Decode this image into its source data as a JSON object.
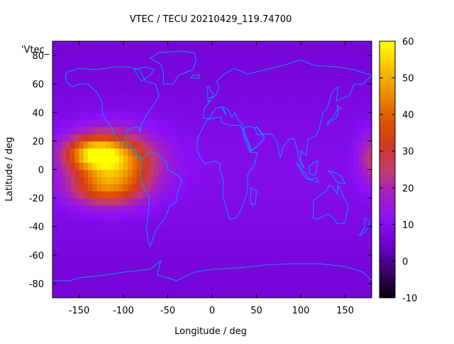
{
  "chart_data": {
    "type": "heatmap",
    "title": "VTEC / TECU 20210429_119.74700",
    "xlabel": "Longitude / deg",
    "ylabel": "Latitude / deg",
    "key_label": "'Vtec_",
    "xlim": [
      -180,
      180
    ],
    "ylim": [
      -90,
      90
    ],
    "x_ticks": [
      -150,
      -100,
      -50,
      0,
      50,
      100,
      150
    ],
    "y_ticks": [
      -80,
      -60,
      -40,
      -20,
      0,
      20,
      40,
      60,
      80
    ],
    "colorbar": {
      "range": [
        -10,
        60
      ],
      "ticks": [
        -10,
        0,
        10,
        20,
        30,
        40,
        50,
        60
      ],
      "palette": [
        "#000000",
        "#3b0068",
        "#6a00c8",
        "#8a10f5",
        "#a31fc8",
        "#c43a6e",
        "#d2371e",
        "#e05a00",
        "#ee8e00",
        "#f7c500",
        "#ffff00"
      ]
    },
    "background_vtec": 8,
    "features": [
      {
        "name": "equatorial-anomaly-core",
        "lon": -110,
        "lat": 5,
        "vtec": 47,
        "lon_spread": 32,
        "lat_spread": 14
      },
      {
        "name": "equatorial-anomaly-north",
        "lon": -135,
        "lat": 12,
        "vtec": 36,
        "lon_spread": 22,
        "lat_spread": 8
      },
      {
        "name": "equatorial-anomaly-south",
        "lon": -120,
        "lat": -14,
        "vtec": 28,
        "lon_spread": 28,
        "lat_spread": 8
      },
      {
        "name": "east-edge-crest",
        "lon": 180,
        "lat": 8,
        "vtec": 24,
        "lon_spread": 10,
        "lat_spread": 12
      }
    ],
    "coastline_color": "#00a0ff",
    "grid": false
  }
}
